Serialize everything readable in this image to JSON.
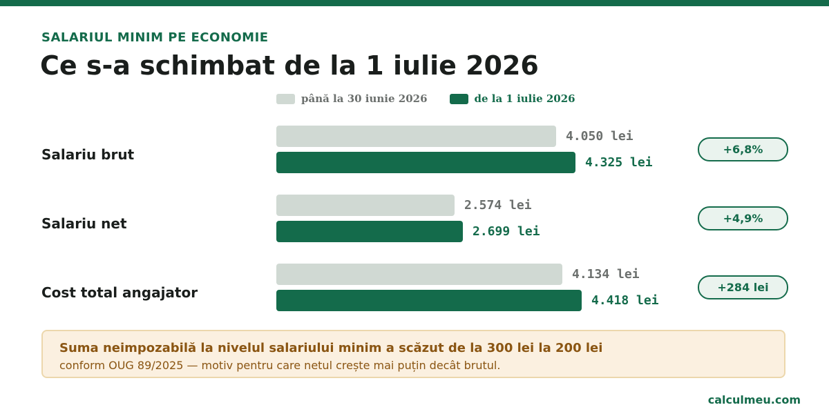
{
  "header": {
    "kicker": "SALARIUL MINIM PE ECONOMIE",
    "title": "Ce s-a schimbat de la 1 iulie 2026"
  },
  "colors": {
    "old": "#d0d9d3",
    "new": "#146b4b",
    "old_text": "#6b6f6d",
    "new_text": "#146b4b",
    "note_bg": "#fbf0e0",
    "note_border": "#ecd7ac",
    "note_text": "#8a5512"
  },
  "chart_data": {
    "type": "bar",
    "orientation": "horizontal",
    "categories": [
      "Salariu brut",
      "Salariu net",
      "Cost total angajator"
    ],
    "series": [
      {
        "name": "până la 30 iunie 2026",
        "values": [
          4050,
          2574,
          4134
        ],
        "labels": [
          "4.050 lei",
          "2.574 lei",
          "4.134 lei"
        ]
      },
      {
        "name": "de la 1 iulie 2026",
        "values": [
          4325,
          2699,
          4418
        ],
        "labels": [
          "4.325 lei",
          "2.699 lei",
          "4.418 lei"
        ]
      }
    ],
    "changes": [
      "+6,8%",
      "+4,9%",
      "+284 lei"
    ],
    "legend_position": "top",
    "grid": false
  },
  "note": {
    "title": "Suma neimpozabilă la nivelul salariului minim a scăzut de la 300 lei la 200 lei",
    "body": "conform OUG 89/2025 — motiv pentru care netul crește mai puțin decât brutul."
  },
  "footer": {
    "site": "calculmeu.com"
  }
}
